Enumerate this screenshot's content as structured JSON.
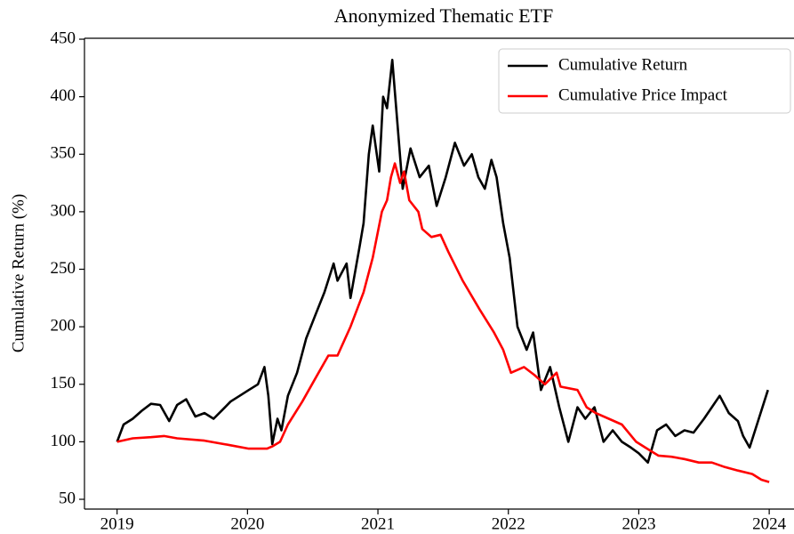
{
  "chart_data": {
    "type": "line",
    "title": "Anonymized Thematic ETF",
    "ylabel": "Cumulative Return (%)",
    "xlim": [
      2018.75,
      2024.19
    ],
    "xticks": [
      2019,
      2020,
      2021,
      2022,
      2023,
      2024
    ],
    "ylim": [
      41.5,
      450.8
    ],
    "yticks": [
      50,
      100,
      150,
      200,
      250,
      300,
      350,
      400,
      450
    ],
    "legend": "upper right",
    "series": [
      {
        "name": "Cumulative Return",
        "color": "#000000",
        "x": [
          2019.0,
          2019.05,
          2019.12,
          2019.19,
          2019.26,
          2019.33,
          2019.4,
          2019.46,
          2019.53,
          2019.6,
          2019.67,
          2019.74,
          2019.81,
          2019.87,
          2019.94,
          2020.01,
          2020.08,
          2020.13,
          2020.16,
          2020.19,
          2020.23,
          2020.26,
          2020.31,
          2020.38,
          2020.45,
          2020.52,
          2020.59,
          2020.66,
          2020.69,
          2020.76,
          2020.79,
          2020.86,
          2020.89,
          2020.93,
          2020.96,
          2021.01,
          2021.04,
          2021.07,
          2021.11,
          2021.14,
          2021.19,
          2021.25,
          2021.32,
          2021.39,
          2021.45,
          2021.52,
          2021.59,
          2021.66,
          2021.72,
          2021.77,
          2021.82,
          2021.87,
          2021.91,
          2021.96,
          2022.01,
          2022.07,
          2022.14,
          2022.19,
          2022.25,
          2022.32,
          2022.39,
          2022.46,
          2022.53,
          2022.59,
          2022.66,
          2022.73,
          2022.8,
          2022.87,
          2022.94,
          2023.0,
          2023.07,
          2023.14,
          2023.21,
          2023.28,
          2023.35,
          2023.42,
          2023.5,
          2023.56,
          2023.62,
          2023.69,
          2023.76,
          2023.8,
          2023.85,
          2023.92,
          2023.99
        ],
        "values": [
          100,
          115,
          120,
          127,
          133,
          132,
          118,
          132,
          137,
          122,
          125,
          120,
          128,
          135,
          140,
          145,
          150,
          165,
          140,
          98,
          120,
          110,
          140,
          160,
          190,
          210,
          230,
          255,
          240,
          255,
          225,
          270,
          290,
          350,
          375,
          335,
          400,
          390,
          432,
          390,
          320,
          355,
          330,
          340,
          305,
          330,
          360,
          340,
          350,
          330,
          320,
          345,
          330,
          290,
          260,
          200,
          180,
          195,
          145,
          165,
          130,
          100,
          130,
          120,
          130,
          100,
          110,
          100,
          95,
          90,
          82,
          110,
          115,
          105,
          110,
          108,
          120,
          130,
          140,
          125,
          118,
          105,
          95,
          120,
          145
        ]
      },
      {
        "name": "Cumulative Price Impact",
        "color": "#ff0000",
        "x": [
          2019.0,
          2019.12,
          2019.26,
          2019.36,
          2019.46,
          2019.67,
          2019.87,
          2020.01,
          2020.15,
          2020.19,
          2020.25,
          2020.31,
          2020.42,
          2020.52,
          2020.62,
          2020.69,
          2020.79,
          2020.89,
          2020.96,
          2021.03,
          2021.07,
          2021.1,
          2021.13,
          2021.17,
          2021.2,
          2021.24,
          2021.31,
          2021.34,
          2021.41,
          2021.48,
          2021.54,
          2021.65,
          2021.78,
          2021.89,
          2021.96,
          2022.02,
          2022.12,
          2022.2,
          2022.28,
          2022.37,
          2022.4,
          2022.53,
          2022.6,
          2022.67,
          2022.77,
          2022.87,
          2022.98,
          2023.05,
          2023.15,
          2023.25,
          2023.35,
          2023.46,
          2023.56,
          2023.66,
          2023.76,
          2023.87,
          2023.94,
          2024.0
        ],
        "values": [
          100,
          103,
          104,
          105,
          103,
          101,
          97,
          94,
          94,
          96,
          100,
          115,
          135,
          155,
          175,
          175,
          200,
          230,
          260,
          300,
          310,
          330,
          342,
          325,
          335,
          310,
          300,
          285,
          278,
          280,
          265,
          240,
          215,
          195,
          180,
          160,
          165,
          158,
          150,
          160,
          148,
          145,
          130,
          125,
          120,
          115,
          100,
          95,
          88,
          87,
          85,
          82,
          82,
          78,
          75,
          72,
          67,
          65
        ]
      }
    ]
  }
}
